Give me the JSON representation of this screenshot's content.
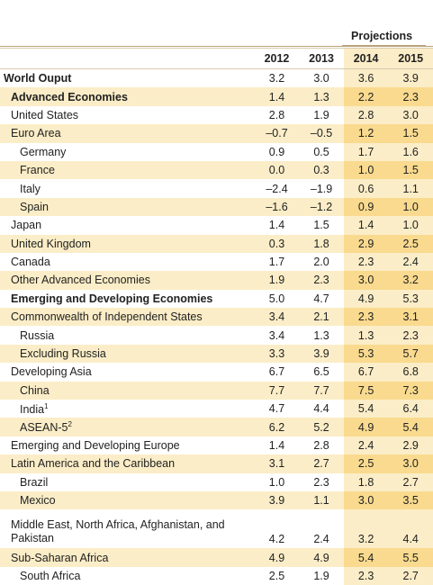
{
  "header": {
    "projections": "Projections"
  },
  "years": [
    "2012",
    "2013",
    "2014",
    "2015"
  ],
  "rows": [
    {
      "label": "World Ouput",
      "sup": "",
      "values": [
        "3.2",
        "3.0",
        "3.6",
        "3.9"
      ]
    },
    {
      "label": "Advanced Economies",
      "sup": "",
      "values": [
        "1.4",
        "1.3",
        "2.2",
        "2.3"
      ]
    },
    {
      "label": "United States",
      "sup": "",
      "values": [
        "2.8",
        "1.9",
        "2.8",
        "3.0"
      ]
    },
    {
      "label": "Euro Area",
      "sup": "",
      "values": [
        "–0.7",
        "–0.5",
        "1.2",
        "1.5"
      ]
    },
    {
      "label": "Germany",
      "sup": "",
      "values": [
        "0.9",
        "0.5",
        "1.7",
        "1.6"
      ]
    },
    {
      "label": "France",
      "sup": "",
      "values": [
        "0.0",
        "0.3",
        "1.0",
        "1.5"
      ]
    },
    {
      "label": "Italy",
      "sup": "",
      "values": [
        "–2.4",
        "–1.9",
        "0.6",
        "1.1"
      ]
    },
    {
      "label": "Spain",
      "sup": "",
      "values": [
        "–1.6",
        "–1.2",
        "0.9",
        "1.0"
      ]
    },
    {
      "label": "Japan",
      "sup": "",
      "values": [
        "1.4",
        "1.5",
        "1.4",
        "1.0"
      ]
    },
    {
      "label": "United Kingdom",
      "sup": "",
      "values": [
        "0.3",
        "1.8",
        "2.9",
        "2.5"
      ]
    },
    {
      "label": "Canada",
      "sup": "",
      "values": [
        "1.7",
        "2.0",
        "2.3",
        "2.4"
      ]
    },
    {
      "label": "Other Advanced Economies",
      "sup": "",
      "values": [
        "1.9",
        "2.3",
        "3.0",
        "3.2"
      ]
    },
    {
      "label": "Emerging and Developing Economies",
      "sup": "",
      "values": [
        "5.0",
        "4.7",
        "4.9",
        "5.3"
      ]
    },
    {
      "label": "Commonwealth of Independent States",
      "sup": "",
      "values": [
        "3.4",
        "2.1",
        "2.3",
        "3.1"
      ]
    },
    {
      "label": "Russia",
      "sup": "",
      "values": [
        "3.4",
        "1.3",
        "1.3",
        "2.3"
      ]
    },
    {
      "label": "Excluding Russia",
      "sup": "",
      "values": [
        "3.3",
        "3.9",
        "5.3",
        "5.7"
      ]
    },
    {
      "label": "Developing Asia",
      "sup": "",
      "values": [
        "6.7",
        "6.5",
        "6.7",
        "6.8"
      ]
    },
    {
      "label": "China",
      "sup": "",
      "values": [
        "7.7",
        "7.7",
        "7.5",
        "7.3"
      ]
    },
    {
      "label": "India",
      "sup": "1",
      "values": [
        "4.7",
        "4.4",
        "5.4",
        "6.4"
      ]
    },
    {
      "label": "ASEAN-5",
      "sup": "2",
      "values": [
        "6.2",
        "5.2",
        "4.9",
        "5.4"
      ]
    },
    {
      "label": "Emerging and Developing Europe",
      "sup": "",
      "values": [
        "1.4",
        "2.8",
        "2.4",
        "2.9"
      ]
    },
    {
      "label": "Latin America and the Caribbean",
      "sup": "",
      "values": [
        "3.1",
        "2.7",
        "2.5",
        "3.0"
      ]
    },
    {
      "label": "Brazil",
      "sup": "",
      "values": [
        "1.0",
        "2.3",
        "1.8",
        "2.7"
      ]
    },
    {
      "label": "Mexico",
      "sup": "",
      "values": [
        "3.9",
        "1.1",
        "3.0",
        "3.5"
      ]
    },
    {
      "label": "Middle East, North Africa, Afghanistan, and Pakistan",
      "sup": "",
      "values": [
        "4.2",
        "2.4",
        "3.2",
        "4.4"
      ]
    },
    {
      "label": "Sub-Saharan Africa",
      "sup": "",
      "values": [
        "4.9",
        "4.9",
        "5.4",
        "5.5"
      ]
    },
    {
      "label": "South Africa",
      "sup": "",
      "values": [
        "2.5",
        "1.9",
        "2.3",
        "2.7"
      ]
    }
  ]
}
